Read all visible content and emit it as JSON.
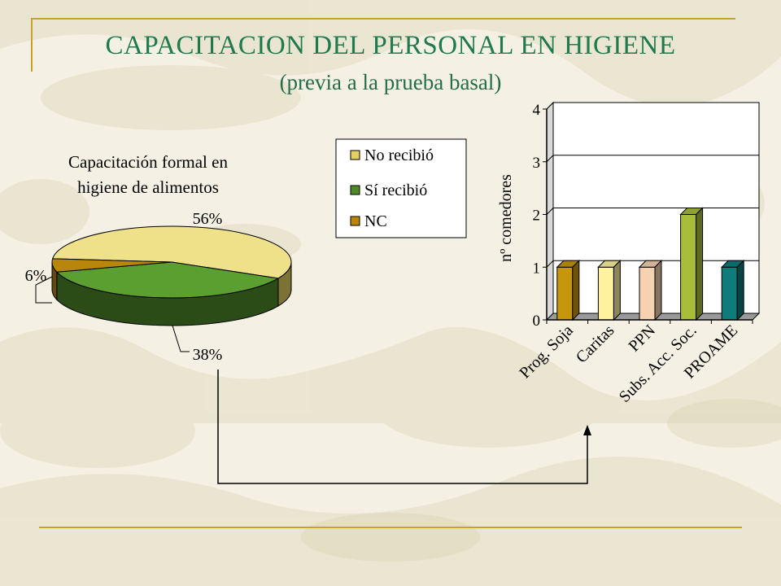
{
  "slide": {
    "title": "CAPACITACION DEL PERSONAL EN HIGIENE",
    "subtitle": "(previa a la prueba basal)",
    "colors": {
      "accent_line": "#c9a227",
      "title": "#1f7a4d"
    }
  },
  "chart_data": [
    {
      "type": "pie",
      "title_lines": [
        "Capacitación formal en",
        "higiene de alimentos"
      ],
      "legend_position": "right",
      "slices": [
        {
          "name": "No recibió",
          "value": 56,
          "label": "56%",
          "color": "#e3cf62"
        },
        {
          "name": "Sí recibió",
          "value": 38,
          "label": "38%",
          "color": "#4f8a2a"
        },
        {
          "name": "NC",
          "value": 6,
          "label": "6%",
          "color": "#b8860b"
        }
      ]
    },
    {
      "type": "bar",
      "ylabel": "nº comedores",
      "ylim": [
        0,
        4
      ],
      "yticks": [
        "0",
        "1",
        "2",
        "3",
        "4"
      ],
      "grid": true,
      "categories": [
        "Prog. Soja",
        "Caritas",
        "PPN",
        "Subs. Acc. Soc.",
        "PROAME"
      ],
      "values": [
        1,
        1,
        1,
        2,
        1
      ],
      "colors": [
        "#c8960c",
        "#fff3a0",
        "#f6d2b0",
        "#a9bd3a",
        "#0e7c7b"
      ]
    }
  ]
}
